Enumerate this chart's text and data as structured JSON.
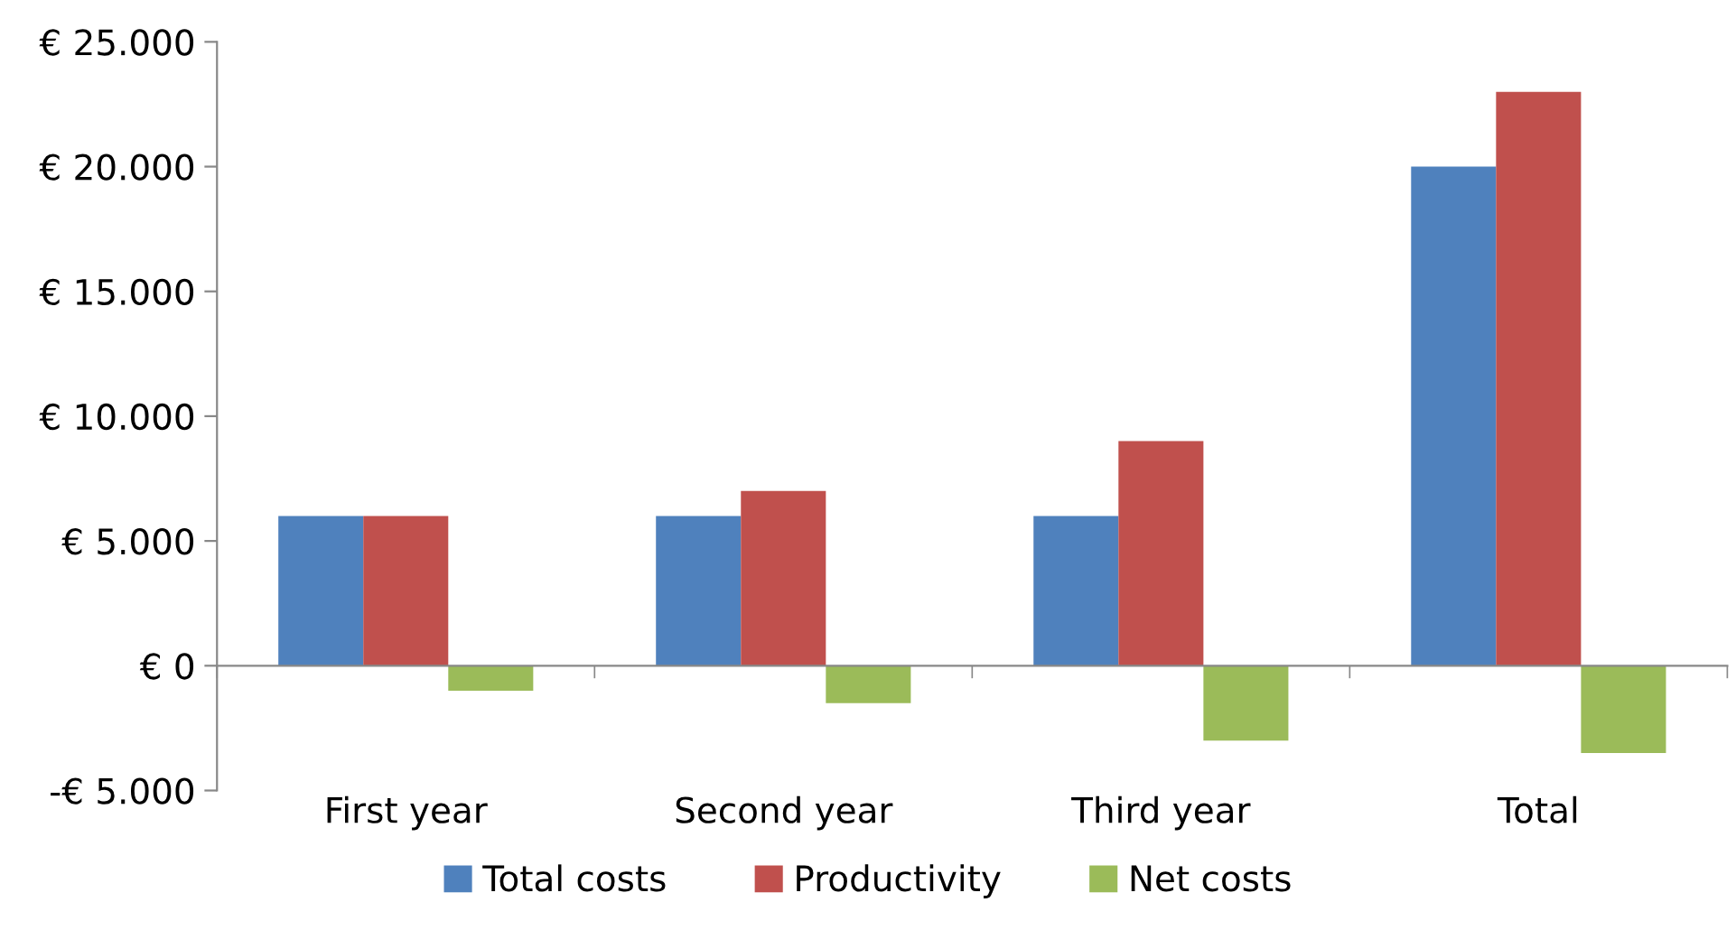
{
  "chart_data": {
    "type": "bar",
    "categories": [
      "First year",
      "Second year",
      "Third year",
      "Total"
    ],
    "series": [
      {
        "name": "Total costs",
        "color": "#4f81bd",
        "values": [
          6000,
          6000,
          6000,
          20000
        ]
      },
      {
        "name": "Productivity",
        "color": "#c0504d",
        "values": [
          6000,
          7000,
          9000,
          23000
        ]
      },
      {
        "name": "Net costs",
        "color": "#9bbb59",
        "values": [
          -1000,
          -1500,
          -3000,
          -3500
        ]
      }
    ],
    "ylim": [
      -5000,
      25000
    ],
    "yticks": [
      {
        "value": -5000,
        "label": "-€ 5.000"
      },
      {
        "value": 0,
        "label": "€ 0"
      },
      {
        "value": 5000,
        "label": "€ 5.000"
      },
      {
        "value": 10000,
        "label": "€ 10.000"
      },
      {
        "value": 15000,
        "label": "€ 15.000"
      },
      {
        "value": 20000,
        "label": "€ 20.000"
      },
      {
        "value": 25000,
        "label": "€ 25.000"
      }
    ],
    "legend": "bottom"
  }
}
